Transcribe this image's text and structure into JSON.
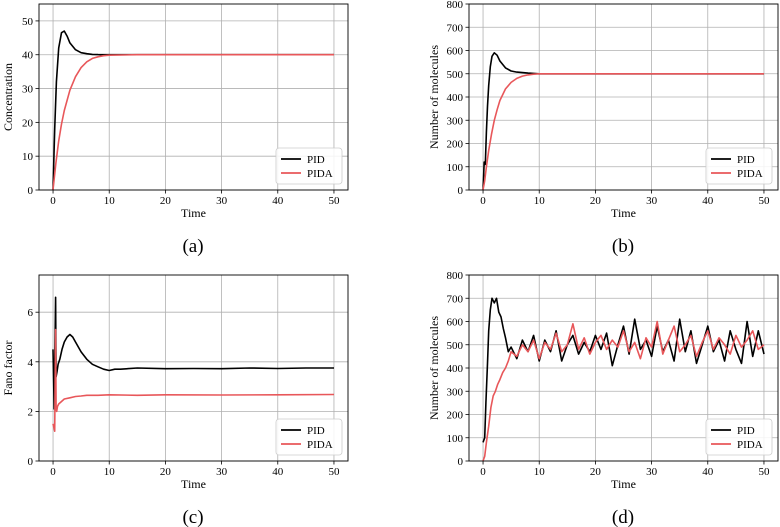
{
  "chart_data": [
    {
      "id": "a",
      "panel_label": "(a)",
      "type": "line",
      "xlabel": "Time",
      "ylabel": "Concentration",
      "xlim": [
        -2.5,
        52.5
      ],
      "ylim": [
        0,
        55
      ],
      "xticks": [
        0,
        10,
        20,
        30,
        40,
        50
      ],
      "yticks": [
        0,
        10,
        20,
        30,
        40,
        50
      ],
      "grid": true,
      "legend_position": "bottom-right",
      "series": [
        {
          "name": "PID",
          "color": "#000000",
          "x": [
            0,
            0.3,
            0.6,
            1.0,
            1.5,
            2.0,
            2.5,
            3.0,
            4.0,
            5.0,
            6.0,
            7.0,
            8.0,
            10.0,
            15.0,
            20.0,
            30.0,
            40.0,
            50.0
          ],
          "y": [
            0,
            18,
            32,
            42,
            46.5,
            47,
            45.5,
            43.5,
            41.5,
            40.6,
            40.3,
            40.1,
            40.05,
            40,
            40,
            40,
            40,
            40,
            40
          ]
        },
        {
          "name": "PIDA",
          "color": "#e8575a",
          "x": [
            0,
            0.5,
            1.0,
            1.5,
            2.0,
            3.0,
            4.0,
            5.0,
            6.0,
            7.0,
            8.0,
            9.0,
            10.0,
            15.0,
            20.0,
            30.0,
            40.0,
            50.0
          ],
          "y": [
            0,
            8,
            14.5,
            19.5,
            23.5,
            29.5,
            33.5,
            36.2,
            37.9,
            38.9,
            39.4,
            39.7,
            39.85,
            40,
            40,
            40,
            40,
            40
          ]
        }
      ]
    },
    {
      "id": "b",
      "panel_label": "(b)",
      "type": "line",
      "xlabel": "Time",
      "ylabel": "Number of molecules",
      "xlim": [
        -2.5,
        52.5
      ],
      "ylim": [
        0,
        800
      ],
      "xticks": [
        0,
        10,
        20,
        30,
        40,
        50
      ],
      "yticks": [
        0,
        100,
        200,
        300,
        400,
        500,
        600,
        700,
        800
      ],
      "grid": true,
      "legend_position": "bottom-right",
      "series": [
        {
          "name": "PID",
          "color": "#000000",
          "x": [
            0,
            0.2,
            0.4,
            0.6,
            0.8,
            1.0,
            1.3,
            1.6,
            2.0,
            2.5,
            3.0,
            4.0,
            5.0,
            6.0,
            8.0,
            10.0,
            15.0,
            20.0,
            30.0,
            40.0,
            50.0
          ],
          "y": [
            0,
            120,
            110,
            250,
            360,
            450,
            530,
            575,
            590,
            580,
            555,
            525,
            512,
            507,
            503,
            500,
            500,
            500,
            500,
            500,
            500
          ]
        },
        {
          "name": "PIDA",
          "color": "#e8575a",
          "x": [
            0,
            0.3,
            0.6,
            1.0,
            1.5,
            2.0,
            2.5,
            3.0,
            4.0,
            5.0,
            6.0,
            7.0,
            8.0,
            9.0,
            10.0,
            15.0,
            20.0,
            30.0,
            40.0,
            50.0
          ],
          "y": [
            0,
            40,
            100,
            170,
            240,
            300,
            345,
            385,
            435,
            463,
            480,
            490,
            495,
            498,
            500,
            500,
            500,
            500,
            500,
            500
          ]
        }
      ]
    },
    {
      "id": "c",
      "panel_label": "(c)",
      "type": "line",
      "xlabel": "Time",
      "ylabel": "Fano factor",
      "xlim": [
        -2.5,
        52.5
      ],
      "ylim": [
        0,
        7.5
      ],
      "xticks": [
        0,
        10,
        20,
        30,
        40,
        50
      ],
      "yticks": [
        0,
        2,
        4,
        6
      ],
      "grid": true,
      "legend_position": "bottom-right",
      "series": [
        {
          "name": "PID",
          "color": "#000000",
          "x": [
            0,
            0.2,
            0.3,
            0.45,
            0.55,
            0.7,
            0.9,
            1.2,
            1.6,
            2.0,
            2.5,
            3.0,
            3.5,
            4.0,
            5.0,
            6.0,
            7.0,
            8.0,
            9.0,
            10.0,
            11.0,
            12.0,
            15.0,
            20.0,
            25.0,
            30.0,
            35.0,
            40.0,
            45.0,
            50.0
          ],
          "y": [
            4.5,
            2.1,
            3.8,
            6.6,
            3.4,
            3.6,
            3.9,
            4.1,
            4.5,
            4.8,
            5.0,
            5.1,
            5.0,
            4.8,
            4.4,
            4.1,
            3.9,
            3.8,
            3.7,
            3.65,
            3.7,
            3.7,
            3.75,
            3.72,
            3.73,
            3.72,
            3.75,
            3.73,
            3.75,
            3.75
          ]
        },
        {
          "name": "PIDA",
          "color": "#e8575a",
          "x": [
            0,
            0.2,
            0.3,
            0.45,
            0.55,
            0.65,
            0.8,
            1.0,
            1.5,
            2.0,
            3.0,
            4.0,
            5.0,
            6.0,
            8.0,
            10.0,
            15.0,
            20.0,
            30.0,
            40.0,
            50.0
          ],
          "y": [
            1.5,
            1.3,
            1.2,
            5.3,
            2.1,
            2.0,
            2.2,
            2.3,
            2.4,
            2.5,
            2.55,
            2.6,
            2.62,
            2.65,
            2.65,
            2.67,
            2.65,
            2.67,
            2.66,
            2.67,
            2.68
          ]
        }
      ]
    },
    {
      "id": "d",
      "panel_label": "(d)",
      "type": "line",
      "xlabel": "Time",
      "ylabel": "Number of molecules",
      "xlim": [
        -2.5,
        52.5
      ],
      "ylim": [
        0,
        800
      ],
      "xticks": [
        0,
        10,
        20,
        30,
        40,
        50
      ],
      "yticks": [
        0,
        100,
        200,
        300,
        400,
        500,
        600,
        700,
        800
      ],
      "grid": true,
      "legend_position": "bottom-right",
      "series": [
        {
          "name": "PID",
          "color": "#000000",
          "x": [
            0,
            0.3,
            0.5,
            0.8,
            1.0,
            1.3,
            1.6,
            2.0,
            2.4,
            2.8,
            3.2,
            3.6,
            4.0,
            4.5,
            5.0,
            6.0,
            7.0,
            8.0,
            9.0,
            10.0,
            11.0,
            12.0,
            13.0,
            14.0,
            15.0,
            16.0,
            17.0,
            18.0,
            19.0,
            20.0,
            21.0,
            22.0,
            23.0,
            24.0,
            25.0,
            26.0,
            27.0,
            28.0,
            29.0,
            30.0,
            31.0,
            32.0,
            33.0,
            34.0,
            35.0,
            36.0,
            37.0,
            38.0,
            39.0,
            40.0,
            41.0,
            42.0,
            43.0,
            44.0,
            45.0,
            46.0,
            47.0,
            48.0,
            49.0,
            50.0
          ],
          "y": [
            80,
            100,
            250,
            420,
            560,
            650,
            700,
            680,
            700,
            640,
            620,
            570,
            530,
            470,
            490,
            440,
            520,
            470,
            540,
            430,
            520,
            470,
            560,
            430,
            500,
            540,
            460,
            510,
            470,
            540,
            480,
            550,
            410,
            500,
            580,
            460,
            610,
            480,
            520,
            450,
            580,
            470,
            520,
            430,
            610,
            470,
            560,
            420,
            500,
            580,
            470,
            520,
            430,
            560,
            480,
            420,
            600,
            450,
            560,
            460
          ]
        },
        {
          "name": "PIDA",
          "color": "#e8575a",
          "x": [
            0,
            0.3,
            0.6,
            1.0,
            1.4,
            1.8,
            2.2,
            2.6,
            3.0,
            3.5,
            4.0,
            4.5,
            5.0,
            6.0,
            7.0,
            8.0,
            9.0,
            10.0,
            11.0,
            12.0,
            13.0,
            14.0,
            15.0,
            16.0,
            17.0,
            18.0,
            19.0,
            20.0,
            21.0,
            22.0,
            23.0,
            24.0,
            25.0,
            26.0,
            27.0,
            28.0,
            29.0,
            30.0,
            31.0,
            32.0,
            33.0,
            34.0,
            35.0,
            36.0,
            37.0,
            38.0,
            39.0,
            40.0,
            41.0,
            42.0,
            43.0,
            44.0,
            45.0,
            46.0,
            47.0,
            48.0,
            49.0,
            50.0
          ],
          "y": [
            0,
            20,
            80,
            150,
            230,
            280,
            300,
            330,
            350,
            380,
            400,
            430,
            470,
            450,
            500,
            470,
            520,
            440,
            510,
            480,
            550,
            470,
            500,
            590,
            480,
            530,
            460,
            510,
            540,
            480,
            520,
            490,
            560,
            470,
            510,
            440,
            530,
            490,
            600,
            460,
            520,
            580,
            470,
            500,
            540,
            450,
            510,
            560,
            480,
            530,
            500,
            460,
            540,
            490,
            520,
            560,
            480,
            500
          ]
        }
      ]
    }
  ]
}
